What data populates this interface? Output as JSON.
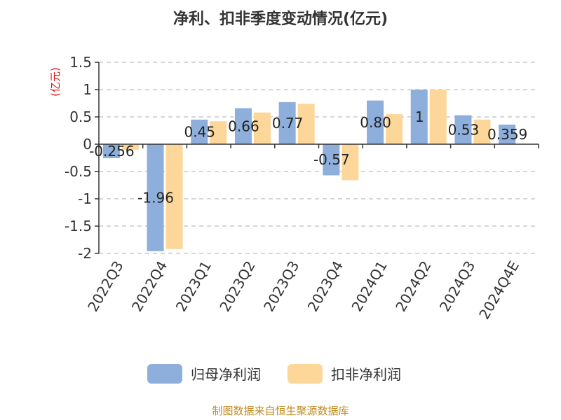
{
  "colors": {
    "series1": "#8eaedb",
    "series2": "#fdd699",
    "grid": "#c8c8c8",
    "axis": "#333333",
    "unit": "#e01010",
    "source": "#c08a1e"
  },
  "source_text": "制图数据来自恒生聚源数据库",
  "chart_data": {
    "type": "bar",
    "title": "净利、扣非季度变动情况(亿元)",
    "ylabel": "(亿元)",
    "xlabel": "",
    "ylim": [
      -2,
      1.5
    ],
    "yticks": [
      1.5,
      1,
      0.5,
      0,
      -0.5,
      -1,
      -1.5,
      -2
    ],
    "ytick_labels": [
      "1.5",
      "1",
      "0.5",
      "0",
      "-0.5",
      "-1",
      "-1.5",
      "-2"
    ],
    "grid": true,
    "legend_position": "bottom",
    "categories": [
      "2022Q3",
      "2022Q4",
      "2023Q1",
      "2023Q2",
      "2023Q3",
      "2023Q4",
      "2024Q1",
      "2024Q2",
      "2024Q3",
      "2024Q4E"
    ],
    "series": [
      {
        "name": "归母净利润",
        "values": [
          -0.256,
          -1.96,
          0.45,
          0.66,
          0.77,
          -0.57,
          0.8,
          1.0,
          0.53,
          0.359
        ],
        "labels": [
          "-0.256",
          "-1.96",
          "0.45",
          "0.66",
          "0.77",
          "-0.57",
          "0.80",
          "1",
          "0.53",
          "0.359"
        ]
      },
      {
        "name": "扣非净利润",
        "values": [
          -0.1,
          -1.92,
          0.42,
          0.58,
          0.74,
          -0.66,
          0.55,
          1.0,
          0.45,
          null
        ]
      }
    ]
  }
}
